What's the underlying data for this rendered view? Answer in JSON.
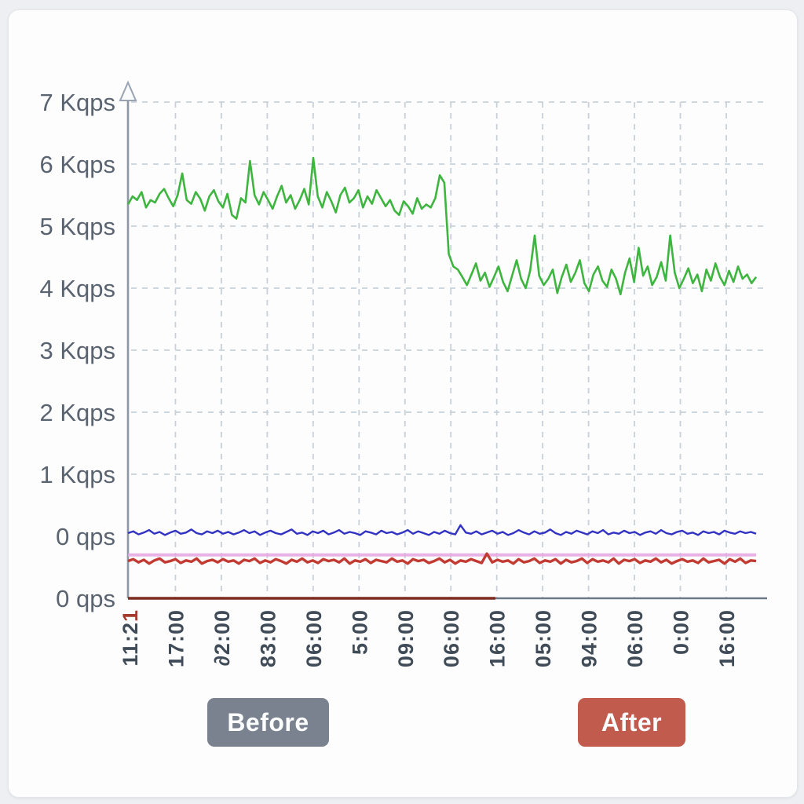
{
  "page": {
    "background_color": "#edeff2",
    "card_background_color": "#fdfdfe"
  },
  "chart": {
    "y_axis": {
      "tick_labels": [
        "7 Kqps",
        "6 Kqps",
        "5 Kqps",
        "4 Kqps",
        "3 Kqps",
        "2 Kqps",
        "1 Kqps",
        "0 qps",
        "0 qps"
      ],
      "label_color": "#5a6370",
      "axis_color": "#8d97a5",
      "has_top_arrow": true
    },
    "x_axis": {
      "ticks": [
        {
          "label": "11:21",
          "accent_last_char": true
        },
        {
          "label": "17:00"
        },
        {
          "label": "∂2:00"
        },
        {
          "label": "83:00"
        },
        {
          "label": "06:00"
        },
        {
          "label": "5:00"
        },
        {
          "label": "09:00"
        },
        {
          "label": "06:00"
        },
        {
          "label": "16:00"
        },
        {
          "label": "05:00"
        },
        {
          "label": "94:00"
        },
        {
          "label": "06:00"
        },
        {
          "label": "0:00"
        },
        {
          "label": "16:00"
        }
      ],
      "label_color": "#404b58",
      "accent_color": "#a43a2a",
      "axis_color": "#6e7988"
    },
    "grid_color": "#c8d0da"
  },
  "chart_data": {
    "type": "line",
    "title": "",
    "y_unit": "qps (Kqps = thousands of queries per second)",
    "ylim_kqps": [
      -1,
      7
    ],
    "y_tick_labels": [
      "7 Kqps",
      "6 Kqps",
      "5 Kqps",
      "4 Kqps",
      "3 Kqps",
      "2 Kqps",
      "1 Kqps",
      "0 qps",
      "0 qps"
    ],
    "x_tick_labels": [
      "11:21",
      "17:00",
      "∂2:00",
      "83:00",
      "06:00",
      "5:00",
      "09:00",
      "06:00",
      "16:00",
      "05:00",
      "94:00",
      "06:00",
      "0:00",
      "16:00"
    ],
    "grid": true,
    "legend": "none",
    "note": "values below 0 are relative to the upper duplicated '0 qps' gridline; samples evenly spaced across plot width",
    "series": [
      {
        "name": "primary-qps-green",
        "color": "#3eb53e",
        "values_kqps": [
          5.35,
          5.48,
          5.42,
          5.55,
          5.3,
          5.42,
          5.38,
          5.52,
          5.6,
          5.45,
          5.32,
          5.5,
          5.85,
          5.42,
          5.36,
          5.55,
          5.44,
          5.25,
          5.48,
          5.58,
          5.4,
          5.3,
          5.52,
          5.18,
          5.12,
          5.45,
          5.38,
          6.05,
          5.5,
          5.35,
          5.55,
          5.42,
          5.28,
          5.48,
          5.65,
          5.38,
          5.5,
          5.28,
          5.42,
          5.6,
          5.35,
          6.1,
          5.48,
          5.3,
          5.55,
          5.4,
          5.22,
          5.5,
          5.62,
          5.38,
          5.45,
          5.58,
          5.3,
          5.48,
          5.36,
          5.58,
          5.45,
          5.32,
          5.42,
          5.25,
          5.18,
          5.4,
          5.32,
          5.2,
          5.45,
          5.28,
          5.35,
          5.3,
          5.45,
          5.82,
          5.7,
          4.55,
          4.35,
          4.3,
          4.18,
          4.05,
          4.22,
          4.4,
          4.12,
          4.25,
          4.02,
          4.18,
          4.35,
          4.1,
          3.95,
          4.2,
          4.45,
          4.15,
          4.0,
          4.28,
          4.85,
          4.2,
          4.05,
          4.15,
          4.3,
          3.92,
          4.18,
          4.38,
          4.1,
          4.25,
          4.45,
          4.08,
          3.95,
          4.22,
          4.35,
          4.12,
          4.02,
          4.3,
          4.15,
          3.9,
          4.25,
          4.48,
          4.1,
          4.65,
          4.2,
          4.35,
          4.05,
          4.18,
          4.42,
          4.12,
          4.85,
          4.25,
          4.0,
          4.15,
          4.32,
          4.08,
          4.22,
          3.95,
          4.3,
          4.12,
          4.4,
          4.18,
          4.05,
          4.28,
          4.1,
          4.35,
          4.15,
          4.22,
          4.08,
          4.18
        ]
      },
      {
        "name": "secondary-qps-blue",
        "color": "#3232c2",
        "values_kqps": [
          0.05,
          0.08,
          0.03,
          0.06,
          0.1,
          0.04,
          0.07,
          0.02,
          0.06,
          0.09,
          0.04,
          0.06,
          0.11,
          0.05,
          0.03,
          0.08,
          0.05,
          0.09,
          0.04,
          0.07,
          0.03,
          0.06,
          0.1,
          0.05,
          0.08,
          0.02,
          0.06,
          0.09,
          0.05,
          0.03,
          0.07,
          0.11,
          0.04,
          0.06,
          0.02,
          0.08,
          0.05,
          0.09,
          0.03,
          0.06,
          0.1,
          0.04,
          0.07,
          0.05,
          0.02,
          0.08,
          0.06,
          0.03,
          0.09,
          0.05,
          0.07,
          0.03,
          0.06,
          0.1,
          0.04,
          0.08,
          0.05,
          0.02,
          0.07,
          0.04,
          0.09,
          0.05,
          0.03,
          0.18,
          0.06,
          0.04,
          0.08,
          0.03,
          0.06,
          0.09,
          0.04,
          0.07,
          0.02,
          0.05,
          0.1,
          0.06,
          0.03,
          0.08,
          0.04,
          0.06,
          0.11,
          0.05,
          0.02,
          0.07,
          0.04,
          0.09,
          0.06,
          0.03,
          0.08,
          0.05,
          0.1,
          0.03,
          0.06,
          0.04,
          0.09,
          0.05,
          0.07,
          0.02,
          0.06,
          0.08,
          0.04,
          0.1,
          0.05,
          0.03,
          0.07,
          0.09,
          0.04,
          0.06,
          0.02,
          0.08,
          0.05,
          0.07,
          0.03,
          0.09,
          0.06,
          0.04,
          0.08,
          0.05,
          0.07,
          0.04
        ]
      },
      {
        "name": "flat-pink",
        "color": "#e7aae3",
        "constant_kqps": -0.3
      },
      {
        "name": "tertiary-qps-red",
        "color": "#c23b33",
        "values_kqps": [
          -0.4,
          -0.37,
          -0.42,
          -0.38,
          -0.44,
          -0.39,
          -0.36,
          -0.42,
          -0.4,
          -0.37,
          -0.43,
          -0.39,
          -0.41,
          -0.36,
          -0.44,
          -0.4,
          -0.38,
          -0.42,
          -0.37,
          -0.41,
          -0.39,
          -0.44,
          -0.38,
          -0.4,
          -0.36,
          -0.43,
          -0.39,
          -0.42,
          -0.37,
          -0.4,
          -0.44,
          -0.38,
          -0.41,
          -0.36,
          -0.42,
          -0.39,
          -0.43,
          -0.37,
          -0.4,
          -0.38,
          -0.42,
          -0.36,
          -0.44,
          -0.39,
          -0.41,
          -0.37,
          -0.43,
          -0.38,
          -0.4,
          -0.42,
          -0.36,
          -0.41,
          -0.39,
          -0.44,
          -0.37,
          -0.4,
          -0.38,
          -0.43,
          -0.4,
          -0.36,
          -0.42,
          -0.38,
          -0.44,
          -0.39,
          -0.41,
          -0.37,
          -0.4,
          -0.43,
          -0.28,
          -0.42,
          -0.38,
          -0.41,
          -0.39,
          -0.44,
          -0.37,
          -0.42,
          -0.4,
          -0.36,
          -0.43,
          -0.39,
          -0.41,
          -0.37,
          -0.44,
          -0.38,
          -0.42,
          -0.4,
          -0.36,
          -0.43,
          -0.37,
          -0.41,
          -0.39,
          -0.42,
          -0.36,
          -0.44,
          -0.38,
          -0.4,
          -0.37,
          -0.43,
          -0.39,
          -0.41,
          -0.36,
          -0.42,
          -0.38,
          -0.44,
          -0.4,
          -0.37,
          -0.41,
          -0.39,
          -0.43,
          -0.36,
          -0.42,
          -0.4,
          -0.38,
          -0.44,
          -0.37,
          -0.41,
          -0.36,
          -0.43,
          -0.39,
          -0.4
        ]
      },
      {
        "name": "baseline-darkred",
        "color": "#7d2b1f",
        "constant_kqps": -1.0,
        "x_span_fraction": [
          0,
          0.585
        ]
      }
    ]
  },
  "buttons": {
    "before": {
      "label": "Before",
      "color": "#79828e"
    },
    "after": {
      "label": "After",
      "color": "#c15b4e"
    }
  }
}
